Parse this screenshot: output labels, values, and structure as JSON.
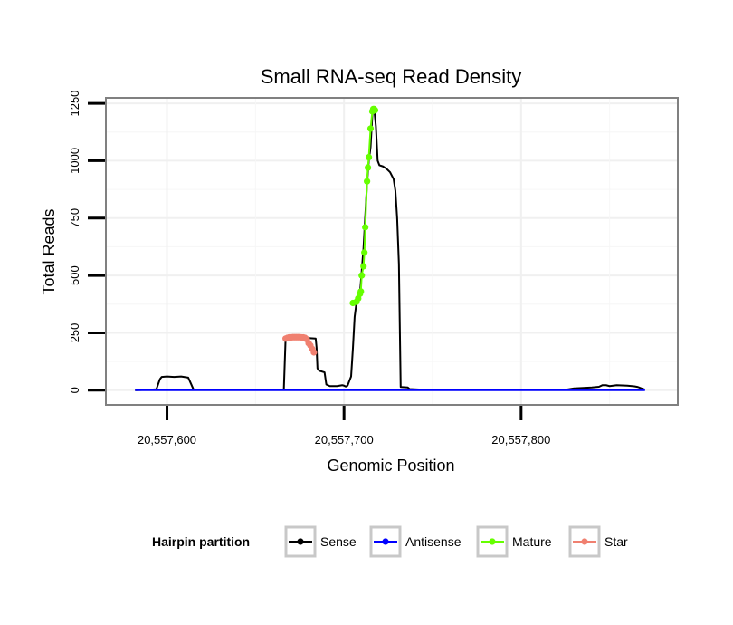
{
  "chart_data": {
    "type": "line",
    "title": "Small RNA-seq Read Density",
    "xlabel": "Genomic Position",
    "ylabel": "Total Reads",
    "xlim": [
      20557566,
      20557888
    ],
    "ylim": [
      -60,
      1270
    ],
    "x_ticks": [
      20557600,
      20557700,
      20557800
    ],
    "x_tick_labels": [
      "20,557,600",
      "20,557,700",
      "20,557,800"
    ],
    "y_ticks": [
      0,
      250,
      500,
      750,
      1000,
      1250
    ],
    "y_tick_labels": [
      "0",
      "250",
      "500",
      "750",
      "1000",
      "1250"
    ],
    "grid": true,
    "legend": {
      "title": "Hairpin partition",
      "position": "bottom",
      "entries": [
        {
          "name": "Sense",
          "color": "#000000"
        },
        {
          "name": "Antisense",
          "color": "#0000ff"
        },
        {
          "name": "Mature",
          "color": "#66ff00"
        },
        {
          "name": "Star",
          "color": "#f08070"
        }
      ]
    },
    "series": [
      {
        "name": "Sense",
        "color": "#000000",
        "points": [
          [
            20557582,
            0
          ],
          [
            20557590,
            2
          ],
          [
            20557594,
            4
          ],
          [
            20557596,
            48
          ],
          [
            20557597,
            58
          ],
          [
            20557600,
            60
          ],
          [
            20557604,
            58
          ],
          [
            20557608,
            60
          ],
          [
            20557612,
            55
          ],
          [
            20557613,
            38
          ],
          [
            20557615,
            3
          ],
          [
            20557625,
            2
          ],
          [
            20557640,
            2
          ],
          [
            20557660,
            2
          ],
          [
            20557666,
            3
          ],
          [
            20557667,
            225
          ],
          [
            20557668,
            228
          ],
          [
            20557678,
            228
          ],
          [
            20557684,
            225
          ],
          [
            20557684.5,
            185
          ],
          [
            20557685,
            95
          ],
          [
            20557686,
            85
          ],
          [
            20557689,
            78
          ],
          [
            20557690,
            25
          ],
          [
            20557692,
            18
          ],
          [
            20557696,
            18
          ],
          [
            20557699,
            22
          ],
          [
            20557700,
            20
          ],
          [
            20557701,
            16
          ],
          [
            20557702,
            20
          ],
          [
            20557703,
            40
          ],
          [
            20557704,
            60
          ],
          [
            20557705,
            180
          ],
          [
            20557706,
            320
          ],
          [
            20557707,
            380
          ],
          [
            20557708,
            395
          ],
          [
            20557709,
            420
          ],
          [
            20557710,
            520
          ],
          [
            20557711,
            620
          ],
          [
            20557712,
            760
          ],
          [
            20557713,
            900
          ],
          [
            20557714,
            1000
          ],
          [
            20557715,
            1060
          ],
          [
            20557716,
            1200
          ],
          [
            20557717,
            1230
          ],
          [
            20557718,
            1150
          ],
          [
            20557719,
            1000
          ],
          [
            20557720,
            980
          ],
          [
            20557722,
            975
          ],
          [
            20557724,
            965
          ],
          [
            20557726,
            950
          ],
          [
            20557728,
            920
          ],
          [
            20557729,
            870
          ],
          [
            20557730,
            750
          ],
          [
            20557731,
            550
          ],
          [
            20557732,
            14
          ],
          [
            20557734,
            13
          ],
          [
            20557736,
            12
          ],
          [
            20557737,
            5
          ],
          [
            20557745,
            2
          ],
          [
            20557760,
            1
          ],
          [
            20557780,
            1
          ],
          [
            20557800,
            1
          ],
          [
            20557815,
            2
          ],
          [
            20557826,
            3
          ],
          [
            20557830,
            8
          ],
          [
            20557840,
            12
          ],
          [
            20557844,
            15
          ],
          [
            20557846,
            22
          ],
          [
            20557848,
            22
          ],
          [
            20557850,
            18
          ],
          [
            20557854,
            22
          ],
          [
            20557860,
            20
          ],
          [
            20557864,
            17
          ],
          [
            20557866,
            14
          ],
          [
            20557868,
            8
          ],
          [
            20557870,
            3
          ]
        ]
      },
      {
        "name": "Antisense",
        "color": "#0000ff",
        "points": [
          [
            20557582,
            0
          ],
          [
            20557870,
            0
          ]
        ]
      },
      {
        "name": "Mature",
        "color": "#66ff00",
        "points": [
          [
            20557705,
            380
          ],
          [
            20557707,
            385
          ],
          [
            20557708,
            400
          ],
          [
            20557709,
            420
          ],
          [
            20557709.5,
            430
          ],
          [
            20557710,
            500
          ],
          [
            20557711,
            540
          ],
          [
            20557711.5,
            600
          ],
          [
            20557712,
            710
          ],
          [
            20557713,
            910
          ],
          [
            20557713.5,
            970
          ],
          [
            20557714,
            1015
          ],
          [
            20557715,
            1140
          ],
          [
            20557716,
            1215
          ],
          [
            20557716.5,
            1225
          ],
          [
            20557717,
            1225
          ],
          [
            20557717.5,
            1220
          ]
        ]
      },
      {
        "name": "Star",
        "color": "#f08070",
        "points": [
          [
            20557667,
            225
          ],
          [
            20557668,
            228
          ],
          [
            20557669,
            230
          ],
          [
            20557670,
            230
          ],
          [
            20557671,
            231
          ],
          [
            20557672,
            231
          ],
          [
            20557673,
            231
          ],
          [
            20557674,
            231
          ],
          [
            20557675,
            231
          ],
          [
            20557676,
            230
          ],
          [
            20557677,
            230
          ],
          [
            20557678,
            228
          ],
          [
            20557679,
            222
          ],
          [
            20557680,
            205
          ],
          [
            20557681,
            195
          ],
          [
            20557682,
            180
          ],
          [
            20557683,
            165
          ]
        ]
      }
    ]
  }
}
